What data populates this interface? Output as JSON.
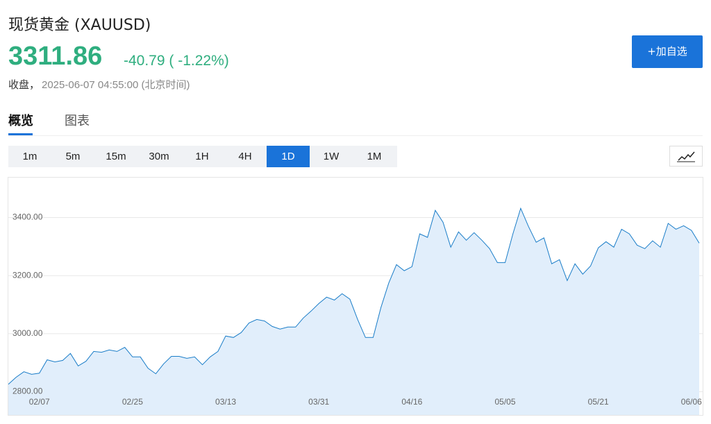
{
  "header": {
    "title": "现货黄金 (XAUUSD)",
    "price": "3311.86",
    "change": "-40.79",
    "change_pct": "( -1.22%)",
    "status": "收盘，",
    "time": "2025-06-07 04:55:00 (北京时间)",
    "watch_button": "+加自选"
  },
  "tabs": [
    "概览",
    "图表"
  ],
  "intervals": [
    "1m",
    "5m",
    "15m",
    "30m",
    "1H",
    "4H",
    "1D",
    "1W",
    "1M"
  ],
  "chart_data": {
    "type": "area",
    "color": "#1a7dc8",
    "fill": "#e1eefb",
    "categories": [
      null,
      null,
      null,
      null,
      "02/07",
      null,
      null,
      null,
      null,
      null,
      null,
      null,
      null,
      null,
      null,
      null,
      "02/25",
      null,
      null,
      null,
      null,
      null,
      null,
      null,
      null,
      null,
      null,
      null,
      "03/13",
      null,
      null,
      null,
      null,
      null,
      null,
      null,
      null,
      null,
      null,
      null,
      "03/31",
      null,
      null,
      null,
      null,
      null,
      null,
      null,
      null,
      null,
      null,
      null,
      "04/16",
      null,
      null,
      null,
      null,
      null,
      null,
      null,
      null,
      null,
      null,
      null,
      "05/05",
      null,
      null,
      null,
      null,
      null,
      null,
      null,
      null,
      null,
      null,
      null,
      "05/21",
      null,
      null,
      null,
      null,
      null,
      null,
      null,
      null,
      null,
      null,
      null,
      "06/06",
      null
    ],
    "values": [
      2826,
      2850,
      2869,
      2860,
      2864,
      2910,
      2903,
      2908,
      2932,
      2889,
      2905,
      2939,
      2936,
      2944,
      2939,
      2953,
      2920,
      2920,
      2881,
      2862,
      2896,
      2922,
      2922,
      2915,
      2920,
      2893,
      2920,
      2939,
      2992,
      2987,
      3004,
      3037,
      3049,
      3044,
      3025,
      3016,
      3023,
      3023,
      3054,
      3078,
      3104,
      3126,
      3116,
      3138,
      3119,
      3049,
      2987,
      2987,
      3090,
      3174,
      3238,
      3217,
      3231,
      3344,
      3332,
      3425,
      3384,
      3298,
      3351,
      3322,
      3348,
      3322,
      3293,
      3245,
      3245,
      3344,
      3432,
      3370,
      3315,
      3330,
      3241,
      3255,
      3183,
      3241,
      3205,
      3233,
      3296,
      3317,
      3298,
      3360,
      3344,
      3305,
      3293,
      3320,
      3298,
      3380,
      3360,
      3372,
      3356,
      3312
    ],
    "ylim": [
      2720,
      3540
    ],
    "yticks": [
      {
        "value": 2800,
        "label": "2800.00"
      },
      {
        "value": 3000,
        "label": "3000.00"
      },
      {
        "value": 3200,
        "label": "3200.00"
      },
      {
        "value": 3400,
        "label": "3400.00"
      }
    ],
    "grid": true
  }
}
